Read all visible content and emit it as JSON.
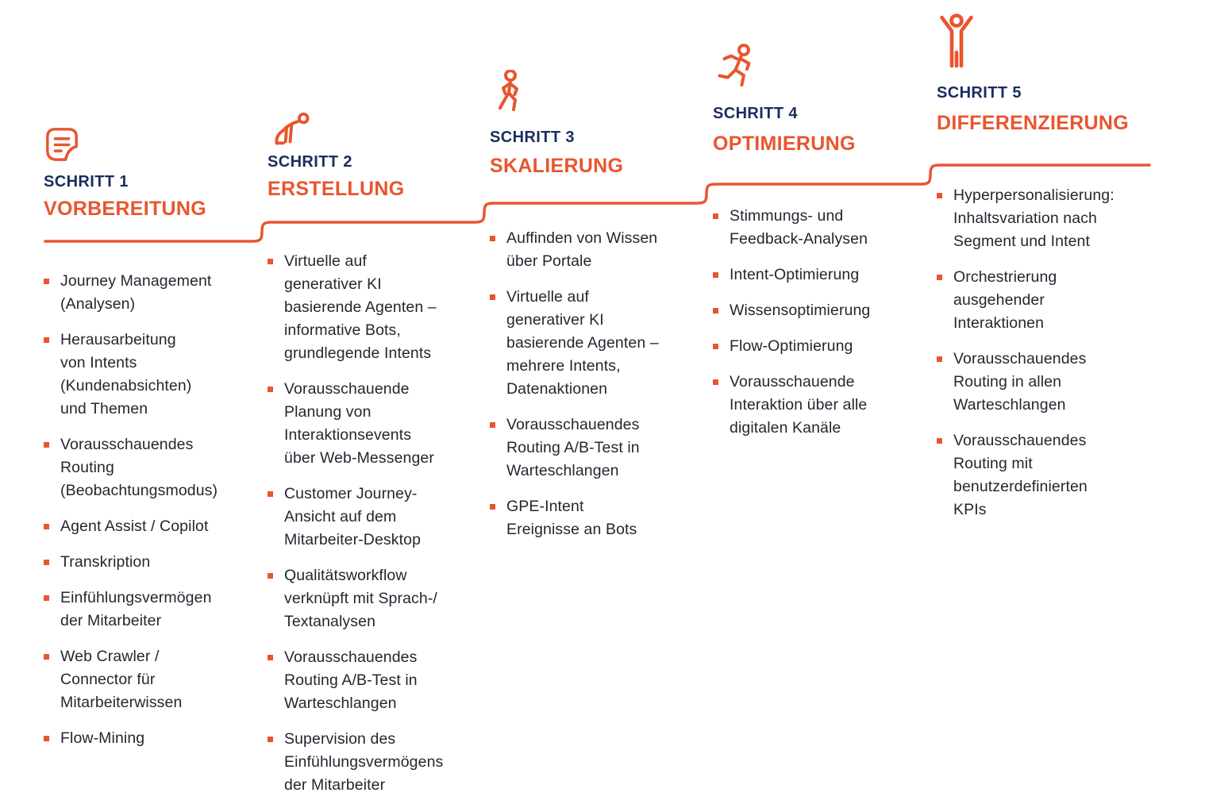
{
  "colors": {
    "accent": "#E9552E",
    "navy": "#1B2D5E",
    "text": "#242730",
    "background": "#FFFFFF"
  },
  "steps": [
    {
      "label": "SCHRITT 1",
      "title": "VORBEREITUNG",
      "icon": "memo-icon",
      "items": [
        "Journey Management\n(Analysen)",
        "Herausarbeitung\nvon Intents\n(Kundenabsichten)\nund Themen",
        "Vorausschauendes\nRouting\n(Beobachtungsmodus)",
        "Agent Assist / Copilot",
        "Transkription",
        "Einfühlungsvermögen\nder Mitarbeiter",
        "Web Crawler /\nConnector für\nMitarbeiterwissen",
        "Flow-Mining"
      ]
    },
    {
      "label": "SCHRITT 2",
      "title": "ERSTELLUNG",
      "icon": "crouching-runner-icon",
      "items": [
        "Virtuelle auf\ngenerativer KI\nbasierende Agenten –\ninformative Bots,\ngrundlegende Intents",
        "Vorausschauende\nPlanung von\nInteraktionsevents\nüber Web-Messenger",
        "Customer Journey-\nAnsicht auf dem\nMitarbeiter-Desktop",
        "Qualitätsworkflow\nverknüpft mit Sprach-/\nTextanalysen",
        "Vorausschauendes\nRouting A/B-Test in\nWarteschlangen",
        "Supervision des\nEinfühlungsvermögens\nder Mitarbeiter"
      ]
    },
    {
      "label": "SCHRITT 3",
      "title": "SKALIERUNG",
      "icon": "walking-person-icon",
      "items": [
        "Auffinden von Wissen\nüber Portale",
        "Virtuelle auf\ngenerativer KI\nbasierende Agenten –\nmehrere Intents,\nDatenaktionen",
        "Vorausschauendes\nRouting A/B-Test in\nWarteschlangen",
        "GPE-Intent\nEreignisse an Bots"
      ]
    },
    {
      "label": "SCHRITT 4",
      "title": "OPTIMIERUNG",
      "icon": "running-person-icon",
      "items": [
        "Stimmungs- und\nFeedback-Analysen",
        "Intent-Optimierung",
        "Wissensoptimierung",
        "Flow-Optimierung",
        "Vorausschauende\nInteraktion über alle\ndigitalen Kanäle"
      ]
    },
    {
      "label": "SCHRITT 5",
      "title": "DIFFERENZIERUNG",
      "icon": "cheering-person-icon",
      "items": [
        "Hyperpersonalisierung:\nInhaltsvariation nach\nSegment und Intent",
        "Orchestrierung\nausgehender\nInteraktionen",
        "Vorausschauendes\nRouting in allen\nWarteschlangen",
        "Vorausschauendes\nRouting mit\nbenutzerdefinierten\nKPIs"
      ]
    }
  ]
}
